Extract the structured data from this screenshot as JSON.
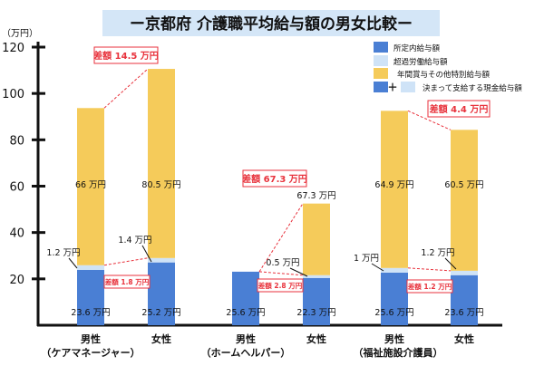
{
  "chart_data": {
    "type": "bar",
    "stacked": true,
    "title": "ー京都府 介護職平均給与額の男女比較ー",
    "ylabel": "（万円）",
    "ylim": [
      0,
      120
    ],
    "yticks": [
      "20",
      "40",
      "60",
      "80",
      "100",
      "120"
    ],
    "legend": {
      "placement": "top-right",
      "items": [
        "所定内給与額",
        "超過労働給与額",
        "年間賞与その他特別給与額",
        "決まって支給する現金給与額"
      ],
      "plus": "＋"
    },
    "colors": {
      "base": "#4a7fd4",
      "overtime": "#cfe3f7",
      "bonus": "#f5cb5a",
      "diff": "#e8323c",
      "title_bg": "#d4e6f7"
    },
    "groups": [
      {
        "gender": "男性",
        "occupation": "（ケアマネージャー）"
      },
      {
        "gender": "女性",
        "occupation": ""
      },
      {
        "gender": "男性",
        "occupation": "（ホームヘルパー）"
      },
      {
        "gender": "女性",
        "occupation": ""
      },
      {
        "gender": "男性",
        "occupation": "（福祉施設介護員）"
      },
      {
        "gender": "女性",
        "occupation": ""
      }
    ],
    "series": [
      {
        "name": "所定内給与額",
        "values": [
          23.9,
          27.1,
          23.1,
          20.4,
          22.7,
          21.6
        ],
        "labels": [
          "23.6 万円",
          "25.2 万円",
          "25.6 万円",
          "22.3 万円",
          "25.6 万円",
          "23.6 万円"
        ]
      },
      {
        "name": "超過労働給与額",
        "values": [
          2.0,
          1.9,
          0,
          1.2,
          2.0,
          1.9
        ],
        "labels": [
          "1.2 万円",
          "1.4 万円",
          "",
          "0.5 万円",
          "1 万円",
          "1.2 万円"
        ]
      },
      {
        "name": "年間賞与その他特別給与額",
        "values": [
          67.8,
          81.6,
          0,
          30.9,
          67.8,
          60.8
        ],
        "labels": [
          "66 万円",
          "80.5 万円",
          "",
          "67.3 万円",
          "64.9 万円",
          "60.5 万円"
        ]
      }
    ],
    "differences": [
      {
        "label": "差額 14.5 万円"
      },
      {
        "label": "差額 1.8 万円"
      },
      {
        "label": "差額 67.3 万円"
      },
      {
        "label": "差額 2.8 万円"
      },
      {
        "label": "差額 4.4 万円"
      },
      {
        "label": "差額 1.2 万円"
      }
    ]
  }
}
